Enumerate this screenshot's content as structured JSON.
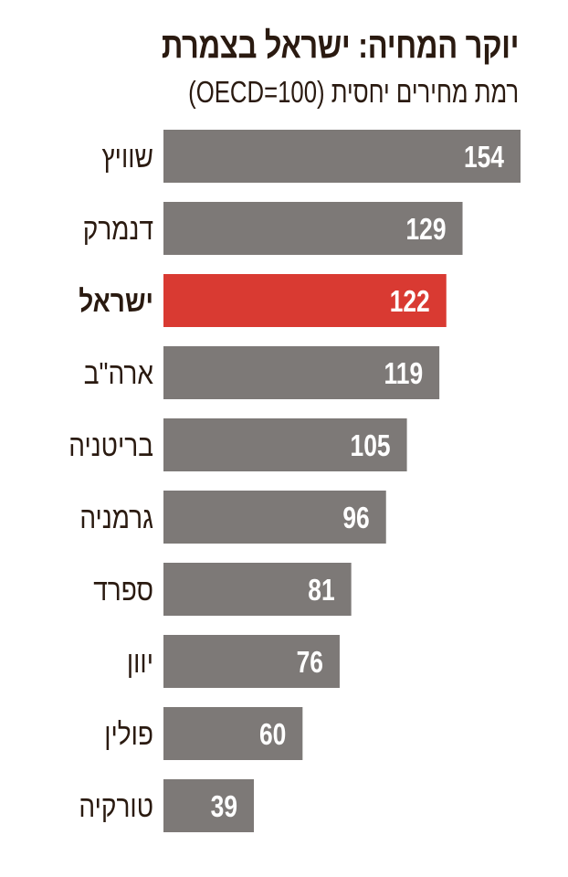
{
  "chart_data": {
    "type": "bar",
    "orientation": "horizontal",
    "title": "יוקר המחיה: ישראל בצמרת",
    "subtitle": "רמת מחירים יחסית (OECD=100)",
    "categories": [
      "שוויץ",
      "דנמרק",
      "ישראל",
      "ארה\"ב",
      "בריטניה",
      "גרמניה",
      "ספרד",
      "יוון",
      "פולין",
      "טורקיה"
    ],
    "values": [
      154,
      129,
      122,
      119,
      105,
      96,
      81,
      76,
      60,
      39
    ],
    "highlight": "ישראל",
    "colors": {
      "bar": "#7d7977",
      "highlight": "#d93a32",
      "text": "#2a1a10",
      "value_label": "#ffffff"
    },
    "xlim": [
      0,
      154
    ],
    "grid": false,
    "legend": "none"
  }
}
